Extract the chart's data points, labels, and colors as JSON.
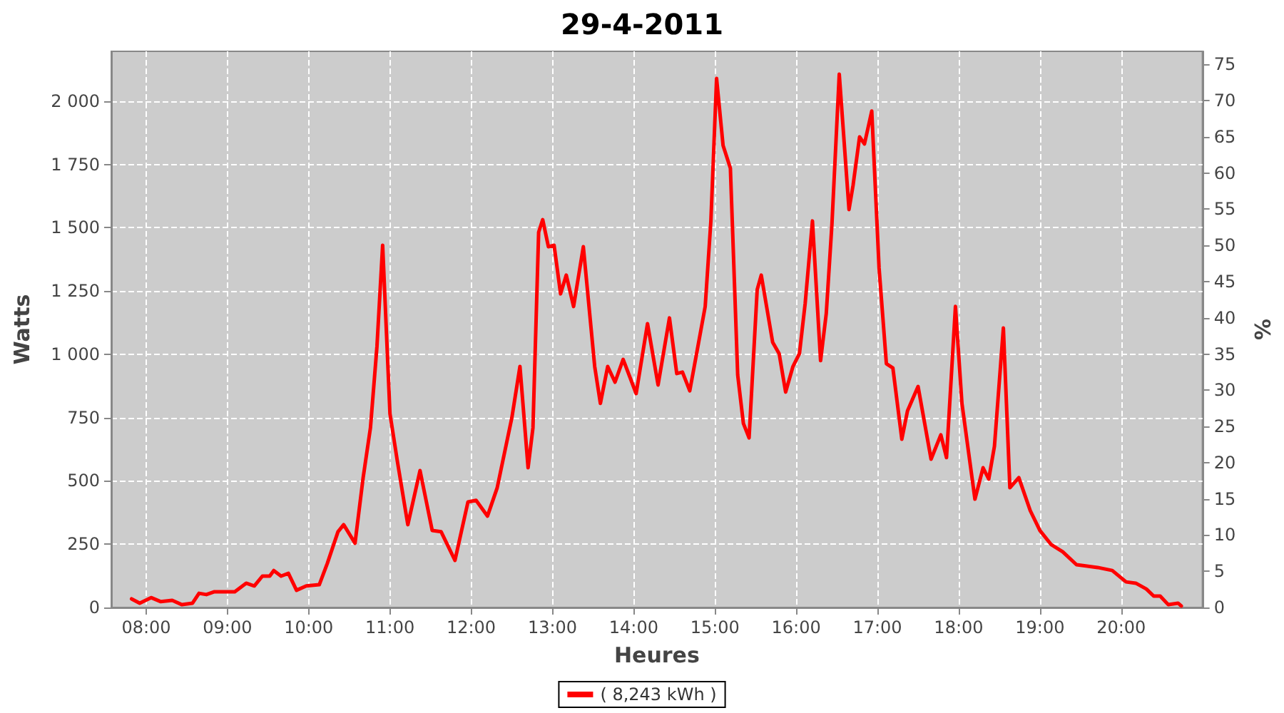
{
  "chart_data": {
    "type": "line",
    "title": "29-4-2011",
    "xlabel": "Heures",
    "ylabel": "Watts",
    "y2label": "%",
    "xlim": [
      7.57,
      21.0
    ],
    "xticks": [
      {
        "value": 8,
        "label": "08:00"
      },
      {
        "value": 9,
        "label": "09:00"
      },
      {
        "value": 10,
        "label": "10:00"
      },
      {
        "value": 11,
        "label": "11:00"
      },
      {
        "value": 12,
        "label": "12:00"
      },
      {
        "value": 13,
        "label": "13:00"
      },
      {
        "value": 14,
        "label": "14:00"
      },
      {
        "value": 15,
        "label": "15:00"
      },
      {
        "value": 16,
        "label": "16:00"
      },
      {
        "value": 17,
        "label": "17:00"
      },
      {
        "value": 18,
        "label": "18:00"
      },
      {
        "value": 19,
        "label": "19:00"
      },
      {
        "value": 20,
        "label": "20:00"
      }
    ],
    "ylim": [
      0,
      2197
    ],
    "yticks": [
      0,
      250,
      500,
      750,
      {
        "value": 1000,
        "label": "1 000"
      },
      {
        "value": 1250,
        "label": "1 250"
      },
      {
        "value": 1500,
        "label": "1 500"
      },
      {
        "value": 1750,
        "label": "1 750"
      },
      {
        "value": 2000,
        "label": "2 000"
      }
    ],
    "y2lim": [
      0,
      76.8
    ],
    "y2ticks": [
      0,
      5,
      10,
      15,
      20,
      25,
      30,
      35,
      40,
      45,
      50,
      55,
      60,
      65,
      70,
      75
    ],
    "grid": true,
    "legend": "bottom",
    "marker": "none",
    "line_style": "solid",
    "series": [
      {
        "name": "( 8,243 kWh )",
        "color": "#ff0000",
        "x": [
          7.82,
          7.92,
          8.06,
          8.18,
          8.32,
          8.44,
          8.57,
          8.65,
          8.74,
          8.84,
          9.09,
          9.23,
          9.33,
          9.43,
          9.52,
          9.57,
          9.66,
          9.75,
          9.85,
          9.97,
          10.13,
          10.23,
          10.36,
          10.43,
          10.57,
          10.67,
          10.76,
          10.84,
          10.91,
          11.0,
          11.09,
          11.22,
          11.37,
          11.52,
          11.63,
          11.8,
          11.96,
          12.06,
          12.2,
          12.32,
          12.5,
          12.6,
          12.7,
          12.76,
          12.83,
          12.88,
          12.95,
          13.02,
          13.1,
          13.17,
          13.26,
          13.38,
          13.52,
          13.59,
          13.68,
          13.77,
          13.87,
          14.03,
          14.17,
          14.3,
          14.44,
          14.53,
          14.6,
          14.69,
          14.79,
          14.88,
          14.95,
          15.02,
          15.1,
          15.19,
          15.28,
          15.35,
          15.42,
          15.52,
          15.57,
          15.71,
          15.79,
          15.87,
          15.96,
          16.04,
          16.11,
          16.2,
          16.3,
          16.37,
          16.44,
          16.53,
          16.65,
          16.7,
          16.78,
          16.84,
          16.93,
          17.02,
          17.11,
          17.19,
          17.3,
          17.37,
          17.5,
          17.66,
          17.78,
          17.85,
          17.96,
          18.04,
          18.2,
          18.3,
          18.37,
          18.44,
          18.55,
          18.63,
          18.74,
          18.88,
          19.0,
          19.14,
          19.28,
          19.45,
          19.71,
          19.89,
          20.06,
          20.18,
          20.31,
          20.4,
          20.48,
          20.58,
          20.7,
          20.74
        ],
        "values": [
          34,
          17,
          39,
          23,
          28,
          11,
          17,
          56,
          51,
          62,
          62,
          96,
          85,
          124,
          124,
          146,
          124,
          135,
          68,
          85,
          90,
          175,
          299,
          327,
          254,
          513,
          710,
          1031,
          1431,
          766,
          580,
          327,
          541,
          304,
          299,
          186,
          417,
          423,
          361,
          473,
          749,
          952,
          552,
          710,
          1482,
          1532,
          1425,
          1431,
          1239,
          1313,
          1189,
          1425,
          952,
          806,
          952,
          890,
          980,
          845,
          1121,
          879,
          1144,
          924,
          930,
          856,
          1031,
          1189,
          1527,
          2090,
          1825,
          1735,
          918,
          727,
          670,
          1256,
          1313,
          1048,
          1003,
          851,
          952,
          1003,
          1200,
          1527,
          975,
          1161,
          1515,
          2107,
          1572,
          1668,
          1859,
          1831,
          1961,
          1341,
          963,
          946,
          665,
          777,
          873,
          586,
          682,
          592,
          1189,
          806,
          428,
          552,
          507,
          637,
          1104,
          473,
          513,
          383,
          304,
          248,
          220,
          169,
          158,
          146,
          101,
          96,
          73,
          45,
          45,
          11,
          17,
          6
        ]
      }
    ]
  }
}
